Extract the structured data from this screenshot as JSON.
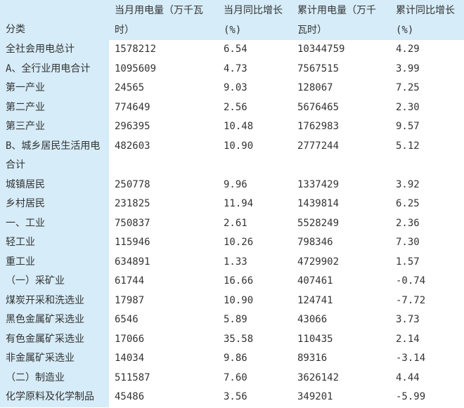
{
  "colors": {
    "header_bg": "#d6ecf8",
    "category_col_bg": "#d6ecf8",
    "body_bg": "#ffffff",
    "text": "#333333"
  },
  "chart_data": {
    "type": "table",
    "columns": [
      "分类",
      "当月用电量（万千瓦时）",
      "当月同比增长(%)",
      "累计用电量（万千瓦时）",
      "累计同比增长(%)"
    ],
    "rows": [
      [
        "全社会用电总计",
        "1578212",
        "6.54",
        "10344759",
        "4.29"
      ],
      [
        "A、全行业用电合计",
        "1095609",
        "4.73",
        "7567515",
        "3.99"
      ],
      [
        "第一产业",
        "24565",
        "9.03",
        "128067",
        "7.25"
      ],
      [
        "第二产业",
        "774649",
        "2.56",
        "5676465",
        "2.30"
      ],
      [
        "第三产业",
        "296395",
        "10.48",
        "1762983",
        "9.57"
      ],
      [
        "B、城乡居民生活用电合计",
        "482603",
        "10.90",
        "2777244",
        "5.12"
      ],
      [
        "城镇居民",
        "250778",
        "9.96",
        "1337429",
        "3.92"
      ],
      [
        "乡村居民",
        "231825",
        "11.94",
        "1439814",
        "6.25"
      ],
      [
        "一、工业",
        "750837",
        "2.61",
        "5528249",
        "2.36"
      ],
      [
        "轻工业",
        "115946",
        "10.26",
        "798346",
        "7.30"
      ],
      [
        "重工业",
        "634891",
        "1.33",
        "4729902",
        "1.57"
      ],
      [
        "（一）采矿业",
        "61744",
        "16.66",
        "407461",
        "-0.74"
      ],
      [
        "煤炭开采和洗选业",
        "17987",
        "10.90",
        "124741",
        "-7.72"
      ],
      [
        "黑色金属矿采选业",
        "6546",
        "5.89",
        "43066",
        "3.73"
      ],
      [
        "有色金属矿采选业",
        "17066",
        "35.58",
        "110435",
        "2.14"
      ],
      [
        "非金属矿采选业",
        "14034",
        "9.86",
        "89316",
        "-3.14"
      ],
      [
        "（二）制造业",
        "511587",
        "7.60",
        "3626142",
        "4.44"
      ],
      [
        "化学原料及化学制品",
        "45486",
        "3.56",
        "349201",
        "-5.99"
      ]
    ]
  }
}
